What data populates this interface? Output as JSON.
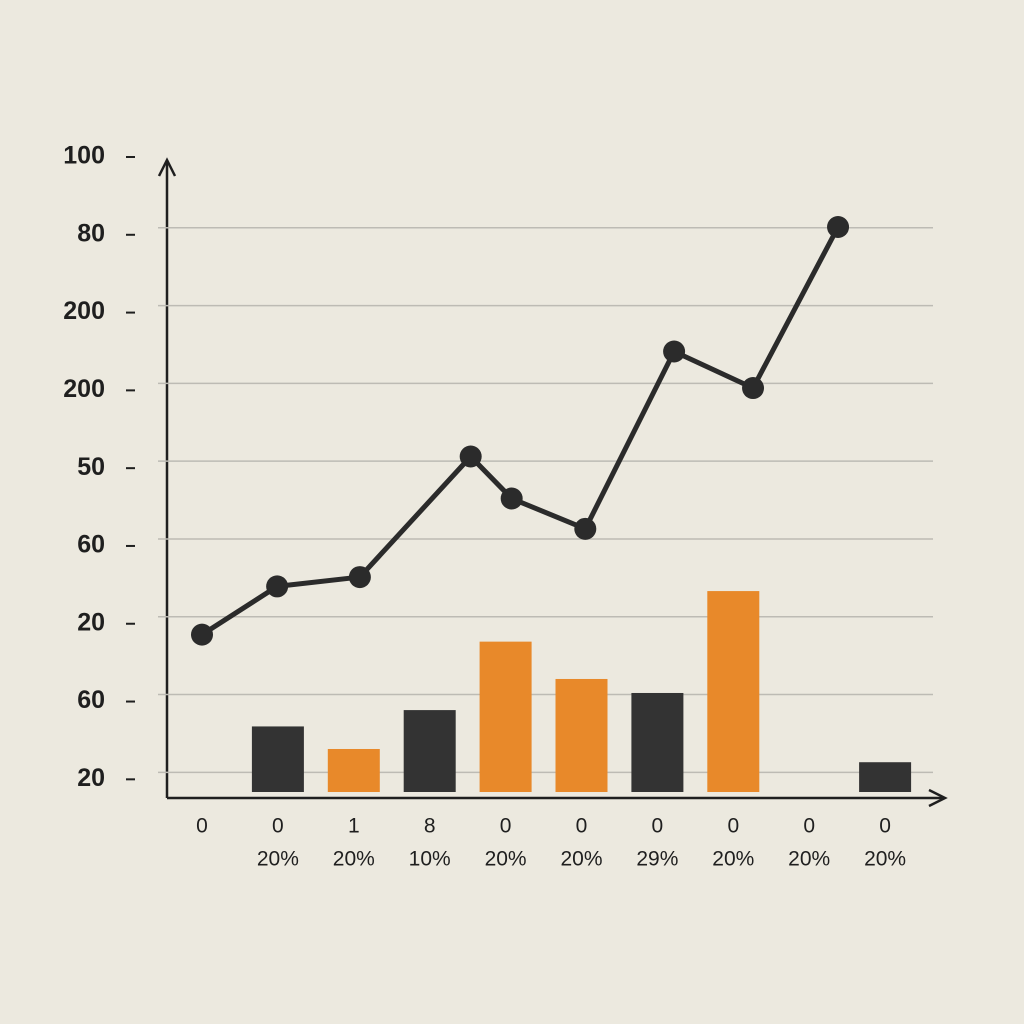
{
  "chart_data": {
    "type": "bar-line",
    "categories": [
      "0",
      "0",
      "1",
      "8",
      "0",
      "0",
      "0",
      "0",
      "0",
      "0"
    ],
    "category_sublabels": [
      null,
      "20%",
      "20%",
      "10%",
      "20%",
      "20%",
      "29%",
      "20%",
      "20%",
      "20%"
    ],
    "ylim": [
      -0.24,
      8
    ],
    "yticks": [
      {
        "value": 8,
        "label": "100"
      },
      {
        "value": 7,
        "label": "80"
      },
      {
        "value": 6,
        "label": "200"
      },
      {
        "value": 5,
        "label": "200"
      },
      {
        "value": 4,
        "label": "50"
      },
      {
        "value": 3,
        "label": "60"
      },
      {
        "value": 2,
        "label": "20"
      },
      {
        "value": 1,
        "label": "60"
      },
      {
        "value": 0,
        "label": "20"
      }
    ],
    "grid": true,
    "bars": {
      "values": [
        null,
        0.68,
        0.39,
        0.89,
        1.77,
        1.29,
        1.11,
        2.42,
        null,
        0.22
      ],
      "colors": [
        null,
        "#333333",
        "#e8892a",
        "#333333",
        "#e8892a",
        "#e8892a",
        "#333333",
        "#e8892a",
        null,
        "#333333"
      ]
    },
    "line": {
      "color": "#2b2b2b",
      "x": [
        0,
        0.99,
        2.08,
        3.54,
        4.08,
        5.05,
        6.22,
        7.26,
        8.38
      ],
      "values": [
        1.86,
        2.48,
        2.6,
        4.15,
        3.61,
        3.22,
        5.5,
        5.03,
        7.1
      ]
    }
  }
}
